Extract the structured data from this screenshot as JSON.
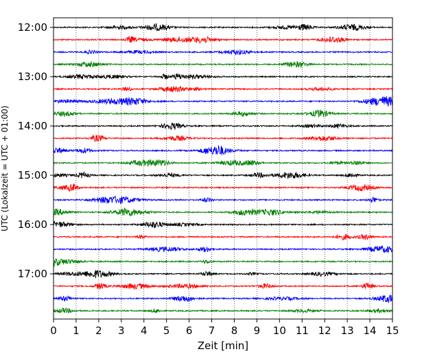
{
  "chart_data": {
    "type": "line",
    "title": "",
    "xlabel": "Zeit  [min]",
    "ylabel": "UTC (Lokalzeit = UTC + 01:00)",
    "xlim": [
      0,
      15
    ],
    "x_ticks": [
      0,
      1,
      2,
      3,
      4,
      5,
      6,
      7,
      8,
      9,
      10,
      11,
      12,
      13,
      14,
      15
    ],
    "x_tick_labels": [
      "0",
      "1",
      "2",
      "3",
      "4",
      "5",
      "6",
      "7",
      "8",
      "9",
      "10",
      "11",
      "12",
      "13",
      "14",
      "15"
    ],
    "y_tick_labels": [
      "12:00",
      "13:00",
      "14:00",
      "15:00",
      "16:00",
      "17:00"
    ],
    "grid": "vertical dotted",
    "trace_colors": [
      "#000000",
      "#ff0000",
      "#0000ff",
      "#008000"
    ],
    "traces": [
      {
        "start": "12:00"
      },
      {
        "start": "12:15"
      },
      {
        "start": "12:30"
      },
      {
        "start": "12:45"
      },
      {
        "start": "13:00"
      },
      {
        "start": "13:15"
      },
      {
        "start": "13:30"
      },
      {
        "start": "13:45"
      },
      {
        "start": "14:00"
      },
      {
        "start": "14:15"
      },
      {
        "start": "14:30"
      },
      {
        "start": "14:45"
      },
      {
        "start": "15:00"
      },
      {
        "start": "15:15"
      },
      {
        "start": "15:30"
      },
      {
        "start": "15:45"
      },
      {
        "start": "16:00"
      },
      {
        "start": "16:15"
      },
      {
        "start": "16:30"
      },
      {
        "start": "16:45"
      },
      {
        "start": "17:00"
      },
      {
        "start": "17:15"
      },
      {
        "start": "17:30"
      },
      {
        "start": "17:45"
      }
    ]
  }
}
